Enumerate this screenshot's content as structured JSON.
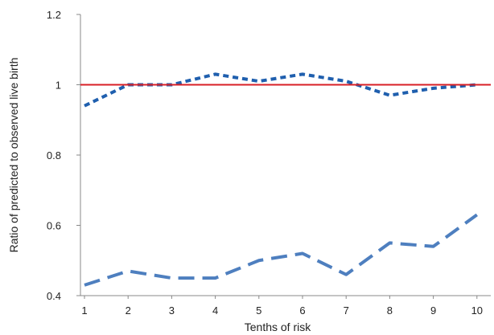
{
  "chart_data": {
    "type": "line",
    "xlabel": "Tenths of risk",
    "ylabel": "Ratio of predicted to observed live birth",
    "x": [
      1,
      2,
      3,
      4,
      5,
      6,
      7,
      8,
      9,
      10
    ],
    "x_ticks": [
      "1",
      "2",
      "3",
      "4",
      "5",
      "6",
      "7",
      "8",
      "9",
      "10"
    ],
    "ylim": [
      0.4,
      1.2
    ],
    "y_ticks": [
      "0.4",
      "0.6",
      "0.8",
      "1",
      "1.2"
    ],
    "grid": false,
    "series": [
      {
        "style": "short-dash",
        "color": "#1f5fae",
        "values": [
          0.94,
          1.0,
          1.0,
          1.03,
          1.01,
          1.03,
          1.01,
          0.97,
          0.99,
          1.0
        ]
      },
      {
        "style": "long-dash",
        "color": "#4e7fbf",
        "values": [
          0.43,
          0.47,
          0.45,
          0.45,
          0.5,
          0.52,
          0.46,
          0.55,
          0.54,
          0.63
        ]
      }
    ],
    "reference_line": {
      "y": 1.0,
      "color": "#d81f26"
    }
  }
}
